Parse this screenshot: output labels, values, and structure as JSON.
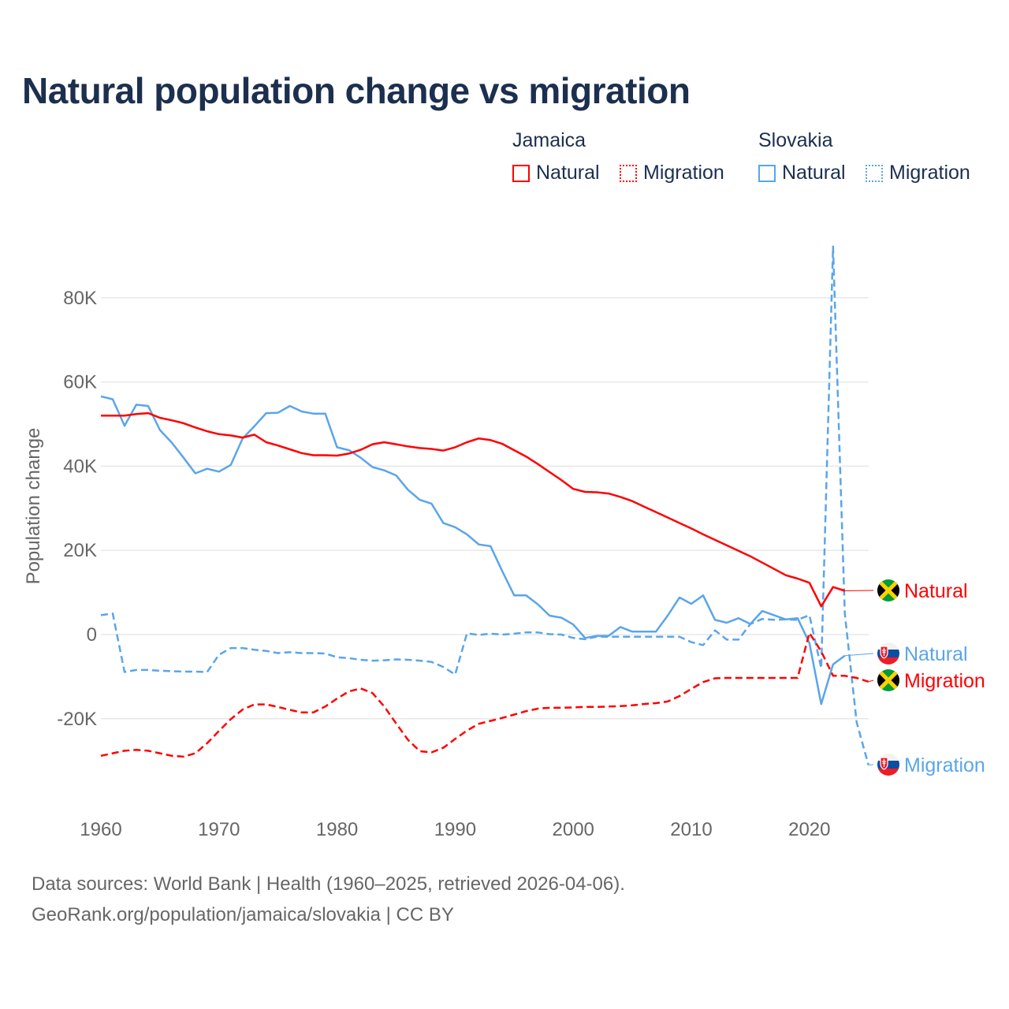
{
  "title": "Natural population change vs migration",
  "legend": {
    "groups": [
      {
        "name": "Jamaica",
        "items": [
          "Natural",
          "Migration"
        ],
        "color": "#ff0000"
      },
      {
        "name": "Slovakia",
        "items": [
          "Natural",
          "Migration"
        ],
        "color": "#5aa5ea"
      }
    ]
  },
  "footer": {
    "line1": "Data sources: World Bank | Health (1960–2025, retrieved 2026-04-06).",
    "line2": "GeoRank.org/population/jamaica/slovakia | CC BY"
  },
  "chart_data": {
    "type": "line",
    "title": "Natural population change vs migration",
    "xlabel": "",
    "ylabel": "Population change",
    "xlim": [
      1960,
      2025
    ],
    "ylim": [
      -38,
      93
    ],
    "units": "thousands",
    "xticks": [
      "1960",
      "1970",
      "1980",
      "1990",
      "2000",
      "2010",
      "2020"
    ],
    "yticks": [
      {
        "value": 80,
        "label": "80K"
      },
      {
        "value": 60,
        "label": "60K"
      },
      {
        "value": 40,
        "label": "40K"
      },
      {
        "value": 20,
        "label": "20K"
      },
      {
        "value": 0,
        "label": "0"
      },
      {
        "value": -20,
        "label": "-20K"
      }
    ],
    "grid": true,
    "x_start": 1960,
    "series": [
      {
        "name": "Jamaica Natural",
        "label": "Natural",
        "country": "Jamaica",
        "color": "#ff0000",
        "dash": false,
        "values": [
          52.0,
          52.0,
          52.0,
          52.4,
          52.6,
          51.5,
          50.9,
          50.2,
          49.2,
          48.3,
          47.6,
          47.3,
          46.8,
          47.5,
          45.7,
          44.9,
          44.0,
          43.1,
          42.6,
          42.6,
          42.5,
          43.0,
          43.9,
          45.2,
          45.7,
          45.2,
          44.7,
          44.3,
          44.1,
          43.7,
          44.5,
          45.7,
          46.6,
          46.2,
          45.3,
          43.8,
          42.3,
          40.5,
          38.6,
          36.7,
          34.6,
          33.9,
          33.8,
          33.5,
          32.7,
          31.7,
          30.4,
          29.1,
          27.8,
          26.5,
          25.2,
          23.8,
          22.5,
          21.2,
          19.9,
          18.6,
          17.1,
          15.6,
          14.1,
          13.3,
          12.3,
          6.7,
          11.3,
          10.4
        ]
      },
      {
        "name": "Jamaica Migration",
        "label": "Migration",
        "country": "Jamaica",
        "color": "#ff0000",
        "dash": true,
        "values": [
          -28.8,
          -28.2,
          -27.6,
          -27.4,
          -27.6,
          -28.2,
          -28.8,
          -29.0,
          -28.2,
          -25.8,
          -22.9,
          -20.1,
          -17.8,
          -16.6,
          -16.6,
          -17.2,
          -17.9,
          -18.5,
          -18.5,
          -17.1,
          -15.2,
          -13.5,
          -12.8,
          -13.9,
          -17.1,
          -21.1,
          -25.0,
          -27.7,
          -28.0,
          -26.9,
          -24.8,
          -22.8,
          -21.2,
          -20.5,
          -19.8,
          -19.0,
          -18.2,
          -17.6,
          -17.4,
          -17.4,
          -17.3,
          -17.2,
          -17.2,
          -17.1,
          -17.0,
          -16.8,
          -16.5,
          -16.3,
          -15.9,
          -14.6,
          -12.9,
          -11.3,
          -10.4,
          -10.3,
          -10.3,
          -10.3,
          -10.3,
          -10.3,
          -10.3,
          -10.3,
          0.4,
          -4.0,
          -9.8,
          -9.8,
          -10.3,
          -11.2
        ]
      },
      {
        "name": "Slovakia Natural",
        "label": "Natural",
        "country": "Slovakia",
        "color": "#5aa5ea",
        "dash": false,
        "values": [
          56.6,
          55.9,
          49.6,
          54.6,
          54.3,
          48.6,
          45.6,
          42.0,
          38.3,
          39.4,
          38.7,
          40.3,
          46.6,
          49.5,
          52.6,
          52.7,
          54.3,
          53.0,
          52.5,
          52.5,
          44.5,
          43.8,
          42.0,
          39.8,
          39.0,
          37.8,
          34.4,
          32.0,
          31.1,
          26.5,
          25.5,
          23.8,
          21.4,
          21.0,
          15.0,
          9.3,
          9.3,
          7.2,
          4.5,
          4.0,
          2.4,
          -0.8,
          -0.3,
          -0.3,
          1.8,
          0.7,
          0.7,
          0.7,
          4.5,
          8.8,
          7.3,
          9.3,
          3.5,
          2.8,
          3.9,
          2.5,
          5.6,
          4.6,
          3.6,
          3.9,
          -2.0,
          -16.5,
          -7.1,
          -5.0
        ]
      },
      {
        "name": "Slovakia Migration",
        "label": "Migration",
        "country": "Slovakia",
        "color": "#5aa5ea",
        "dash": true,
        "values": [
          4.6,
          5.0,
          -8.9,
          -8.4,
          -8.4,
          -8.6,
          -8.7,
          -8.8,
          -8.8,
          -8.9,
          -4.8,
          -3.2,
          -3.2,
          -3.6,
          -3.9,
          -4.4,
          -4.2,
          -4.4,
          -4.4,
          -4.5,
          -5.4,
          -5.6,
          -6.0,
          -6.2,
          -6.1,
          -5.9,
          -6.0,
          -6.2,
          -6.5,
          -7.7,
          -9.5,
          0.3,
          -0.1,
          0.2,
          0.0,
          0.2,
          0.5,
          0.5,
          0.1,
          0.0,
          -0.8,
          -1.1,
          -0.5,
          -0.5,
          -0.5,
          -0.5,
          -0.5,
          -0.5,
          -0.5,
          -0.5,
          -1.8,
          -2.5,
          1.0,
          -1.2,
          -1.2,
          2.5,
          3.7,
          3.5,
          3.6,
          3.5,
          4.6,
          -8.0,
          92.2,
          5.0,
          -20.8,
          -31.0
        ]
      }
    ]
  }
}
